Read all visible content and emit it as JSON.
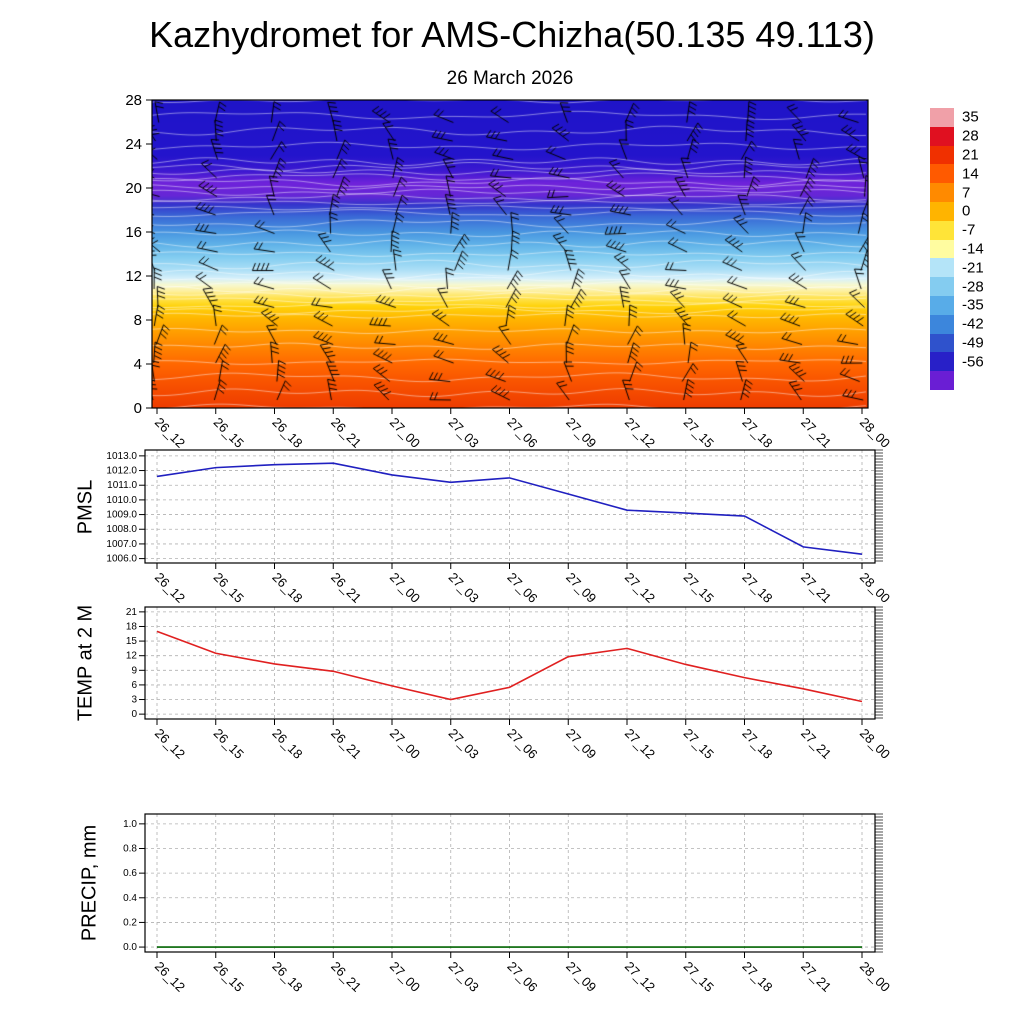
{
  "page": {
    "title": "Kazhydromet for AMS-Chizha(50.135 49.113)"
  },
  "chart_data": [
    {
      "type": "heatmap",
      "name": "temperature-height-section",
      "title": "26 March 2026",
      "categories": [
        "26_12",
        "26_15",
        "26_18",
        "26_21",
        "27_00",
        "27_03",
        "27_06",
        "27_09",
        "27_12",
        "27_15",
        "27_18",
        "27_21",
        "28_00"
      ],
      "ylim": [
        0,
        28
      ],
      "yticks": [
        0,
        4,
        8,
        12,
        16,
        20,
        24,
        28
      ],
      "colorbar_labels": [
        "35",
        "28",
        "21",
        "14",
        "7",
        "0",
        "-7",
        "-14",
        "-21",
        "-28",
        "-35",
        "-42",
        "-49",
        "-56"
      ],
      "colorbar_colors_top_to_bottom": [
        "#f0a0a8",
        "#e01020",
        "#f03000",
        "#ff5a00",
        "#ff8a00",
        "#ffb400",
        "#ffe438",
        "#fffca0",
        "#b4e4f8",
        "#84ccf0",
        "#58ace8",
        "#3c86dc",
        "#2f52cc",
        "#2820c8",
        "#6a1ed4"
      ],
      "field_gradient_top_to_bottom": [
        {
          "pos": 0,
          "color": "#1f14c8"
        },
        {
          "pos": 18,
          "color": "#2314cc"
        },
        {
          "pos": 23,
          "color": "#3c18d0"
        },
        {
          "pos": 27,
          "color": "#6e22da"
        },
        {
          "pos": 31,
          "color": "#6626d6"
        },
        {
          "pos": 34,
          "color": "#3434cc"
        },
        {
          "pos": 38,
          "color": "#3a6ad6"
        },
        {
          "pos": 43,
          "color": "#4896e0"
        },
        {
          "pos": 47,
          "color": "#60b2e8"
        },
        {
          "pos": 51,
          "color": "#82ccf0"
        },
        {
          "pos": 55,
          "color": "#aadef6"
        },
        {
          "pos": 58,
          "color": "#d6f0fa"
        },
        {
          "pos": 60,
          "color": "#f6f8d0"
        },
        {
          "pos": 62,
          "color": "#fdf0a0"
        },
        {
          "pos": 64,
          "color": "#ffe458"
        },
        {
          "pos": 67,
          "color": "#ffd20a"
        },
        {
          "pos": 71,
          "color": "#ffb600"
        },
        {
          "pos": 76,
          "color": "#ff9a00"
        },
        {
          "pos": 81,
          "color": "#ff8000"
        },
        {
          "pos": 86,
          "color": "#ff6600"
        },
        {
          "pos": 92,
          "color": "#f85200"
        },
        {
          "pos": 100,
          "color": "#ee3c00"
        }
      ],
      "overlay": "wind-barbs",
      "description": "Time-height cross-section of shaded temperature with wind barbs; x = time (day_hour), y = level, colorbar on right"
    },
    {
      "type": "line",
      "name": "pmsl",
      "ylabel": "PMSL",
      "categories": [
        "26_12",
        "26_15",
        "26_18",
        "26_21",
        "27_00",
        "27_03",
        "27_06",
        "27_09",
        "27_12",
        "27_15",
        "27_18",
        "27_21",
        "28_00"
      ],
      "values": [
        1011.6,
        1012.2,
        1012.4,
        1012.5,
        1011.7,
        1011.2,
        1011.5,
        1010.4,
        1009.3,
        1009.1,
        1008.9,
        1006.8,
        1006.3
      ],
      "ylim": [
        1005.7,
        1013.4
      ],
      "yticks": [
        1006,
        1007,
        1008,
        1009,
        1010,
        1011,
        1012,
        1013
      ],
      "ytick_labels": [
        "1006.0",
        "1007.0",
        "1008.0",
        "1009.0",
        "1010.0",
        "1011.0",
        "1012.0",
        "1013.0"
      ],
      "line_color": "#2020c0",
      "grid": true
    },
    {
      "type": "line",
      "name": "temp2m",
      "ylabel": "TEMP at 2 M",
      "categories": [
        "26_12",
        "26_15",
        "26_18",
        "26_21",
        "27_00",
        "27_03",
        "27_06",
        "27_09",
        "27_12",
        "27_15",
        "27_18",
        "27_21",
        "28_00"
      ],
      "values": [
        17.0,
        12.5,
        10.3,
        8.8,
        5.8,
        3.0,
        5.5,
        11.8,
        13.5,
        10.2,
        7.5,
        5.2,
        2.6
      ],
      "ylim": [
        -1,
        22
      ],
      "yticks": [
        0,
        3,
        6,
        9,
        12,
        15,
        18,
        21
      ],
      "ytick_labels": [
        "0",
        "3",
        "6",
        "9",
        "12",
        "15",
        "18",
        "21"
      ],
      "line_color": "#e02020",
      "grid": true
    },
    {
      "type": "line",
      "name": "precip",
      "ylabel": "PRECIP, mm",
      "categories": [
        "26_12",
        "26_15",
        "26_18",
        "26_21",
        "27_00",
        "27_03",
        "27_06",
        "27_09",
        "27_12",
        "27_15",
        "27_18",
        "27_21",
        "28_00"
      ],
      "values": [
        0,
        0,
        0,
        0,
        0,
        0,
        0,
        0,
        0,
        0,
        0,
        0,
        0
      ],
      "ylim": [
        -0.04,
        1.08
      ],
      "yticks": [
        0,
        0.2,
        0.4,
        0.6,
        0.8,
        1.0
      ],
      "ytick_labels": [
        "0.0",
        "0.2",
        "0.4",
        "0.6",
        "0.8",
        "1.0"
      ],
      "line_color": "#006400",
      "grid": true
    }
  ]
}
